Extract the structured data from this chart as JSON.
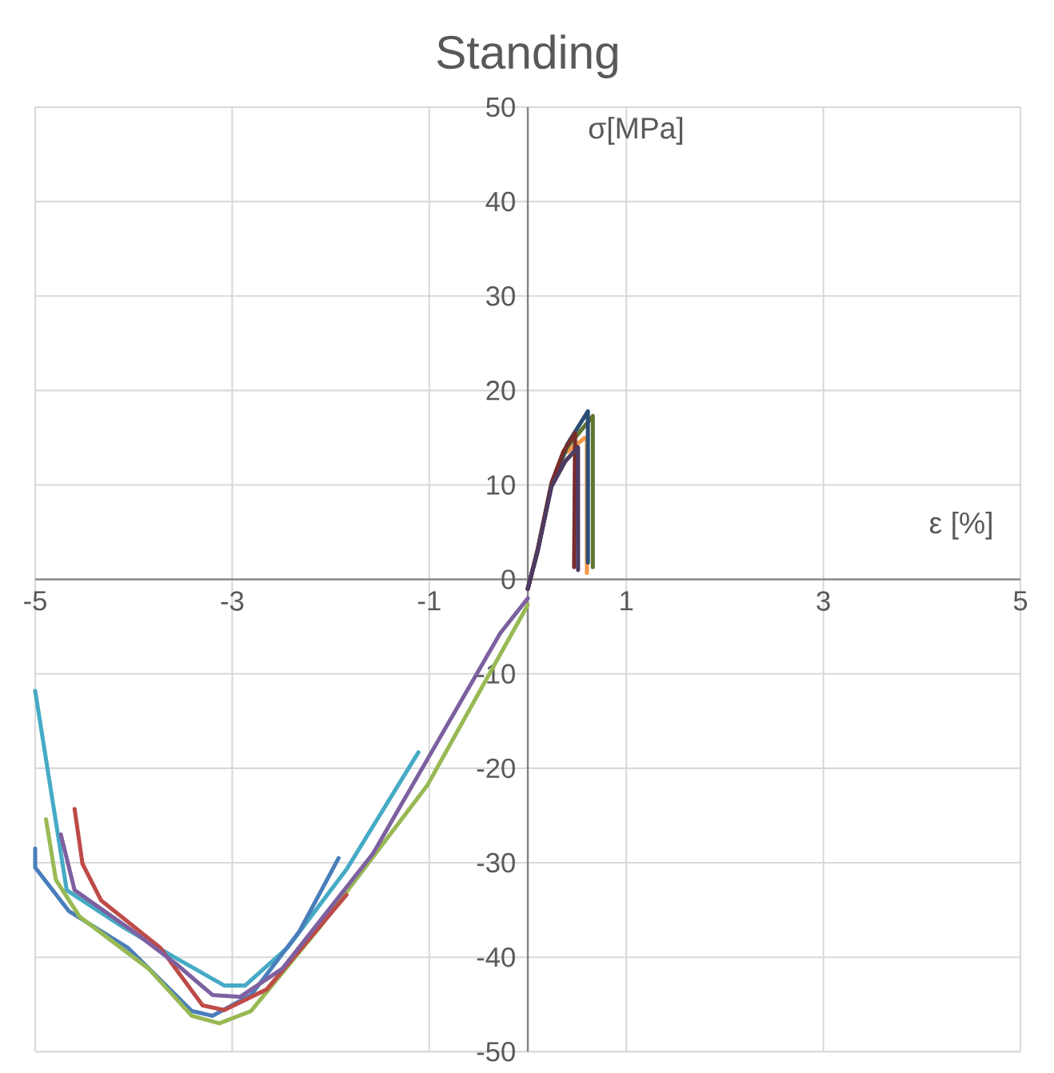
{
  "chart_data": {
    "type": "line",
    "title": "Standing",
    "xlabel": "ε [%]",
    "ylabel": "σ[MPa]",
    "xlim": [
      -5,
      5
    ],
    "ylim": [
      -50,
      50
    ],
    "xticks": [
      -5,
      -3,
      -1,
      1,
      3,
      5
    ],
    "yticks": [
      -50,
      -40,
      -30,
      -20,
      -10,
      0,
      10,
      20,
      30,
      40,
      50
    ],
    "grid": true,
    "marker": "none",
    "line_style": "solid",
    "series": [
      {
        "color": "#46aac5",
        "x": [
          -5,
          -4.68,
          -4.11,
          -3.57,
          -3.08,
          -2.87,
          -2.44,
          -1.84,
          -1.11
        ],
        "values": [
          -11.8,
          -32.9,
          -36.8,
          -40.1,
          -43,
          -43,
          -39,
          -30.7,
          -18.3
        ]
      },
      {
        "color": "#4a7ebb",
        "x": [
          -5,
          -5,
          -4.66,
          -4.06,
          -3.41,
          -3.2,
          -2.81,
          -2.32,
          -1.92
        ],
        "values": [
          -28.5,
          -30.5,
          -35.1,
          -39,
          -45.7,
          -46.2,
          -44,
          -37.3,
          -29.5
        ]
      },
      {
        "color": "#98b954",
        "x": [
          -4.89,
          -4.79,
          -4.55,
          -3.85,
          -3.41,
          -3.13,
          -2.81,
          -2.11,
          -1.02,
          0
        ],
        "values": [
          -25.4,
          -31.8,
          -35.7,
          -41.2,
          -46.2,
          -47,
          -45.7,
          -36.8,
          -21.8,
          -2.7
        ]
      },
      {
        "color": "#be4b48",
        "x": [
          -4.6,
          -4.52,
          -4.33,
          -3.73,
          -3.3,
          -3.08,
          -2.65,
          -1.84
        ],
        "values": [
          -24.3,
          -30.1,
          -34,
          -39,
          -45.1,
          -45.6,
          -43.4,
          -33.4
        ]
      },
      {
        "color": "#7d60a0",
        "x": [
          -4.74,
          -4.6,
          -4,
          -3.57,
          -3.2,
          -2.92,
          -2.49,
          -1.57,
          -0.28,
          0
        ],
        "values": [
          -27,
          -32.9,
          -37.3,
          -40.7,
          -44,
          -44.2,
          -41.2,
          -29,
          -5.7,
          -2
        ]
      },
      {
        "color": "#f79646",
        "x": [
          0.4,
          0.58,
          0.6,
          0.6
        ],
        "values": [
          13.5,
          15,
          15,
          0.7
        ]
      },
      {
        "color": "#5f7530",
        "x": [
          0,
          0.1,
          0.24,
          0.4,
          0.66,
          0.66
        ],
        "values": [
          -1,
          3,
          10,
          14,
          17.3,
          1.3
        ]
      },
      {
        "color": "#2c4d75",
        "x": [
          0,
          0.1,
          0.24,
          0.4,
          0.61,
          0.61
        ],
        "values": [
          -1,
          3,
          10,
          14.3,
          17.8,
          1.8
        ]
      },
      {
        "color": "#772c2a",
        "x": [
          0,
          0.1,
          0.24,
          0.36,
          0.48,
          0.47
        ],
        "values": [
          -1,
          3.2,
          10.2,
          13.5,
          15.5,
          1.3
        ]
      },
      {
        "color": "#4d3b62",
        "x": [
          0,
          0.1,
          0.24,
          0.38,
          0.51,
          0.51
        ],
        "values": [
          -1,
          3,
          9.8,
          12.5,
          14,
          1
        ]
      }
    ]
  }
}
